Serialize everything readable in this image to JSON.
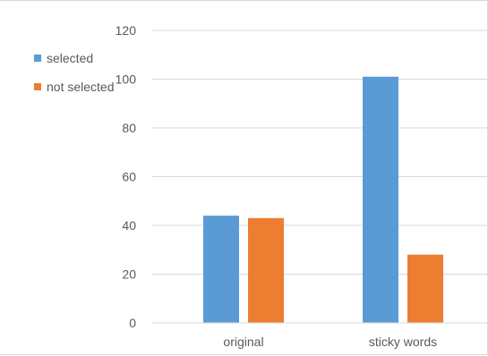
{
  "chart_data": {
    "type": "bar",
    "categories": [
      "original",
      "sticky words"
    ],
    "series": [
      {
        "name": "selected",
        "values": [
          44,
          101
        ],
        "color": "#5b9bd5"
      },
      {
        "name": "not selected",
        "values": [
          43,
          28
        ],
        "color": "#ed7d31"
      }
    ],
    "ylim": [
      0,
      120
    ],
    "yticks": [
      0,
      20,
      40,
      60,
      80,
      100,
      120
    ],
    "yticklabels": [
      "0",
      "20",
      "40",
      "60",
      "80",
      "100",
      "120"
    ],
    "grid": true,
    "gridline_color": "#d9d9d9",
    "legend_position": "top-left"
  }
}
